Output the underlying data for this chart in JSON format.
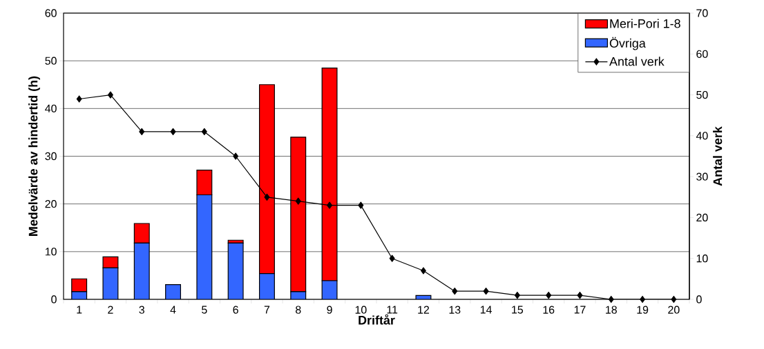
{
  "chart_data": {
    "type": "bar",
    "stacked": true,
    "xlabel": "Driftår",
    "ylabel": "Medelvärde av hindertid (h)",
    "y2label": "Antal verk",
    "categories": [
      "1",
      "2",
      "3",
      "4",
      "5",
      "6",
      "7",
      "8",
      "9",
      "10",
      "11",
      "12",
      "13",
      "14",
      "15",
      "16",
      "17",
      "18",
      "19",
      "20"
    ],
    "series": [
      {
        "name": "Övriga",
        "color": "#3366ff",
        "values": [
          1.6,
          6.6,
          11.8,
          3.1,
          21.9,
          11.8,
          5.4,
          1.6,
          3.9,
          0,
          0,
          0.8,
          0,
          0,
          0,
          0,
          0,
          0,
          0,
          0
        ]
      },
      {
        "name": "Meri-Pori 1-8",
        "color": "#ff0000",
        "values": [
          2.7,
          2.3,
          4.1,
          0,
          5.2,
          0.6,
          39.6,
          32.4,
          44.6,
          0,
          0,
          0,
          0,
          0,
          0,
          0,
          0,
          0,
          0,
          0
        ]
      },
      {
        "name": "Antal verk",
        "type": "line",
        "axis": "y2",
        "color": "#000000",
        "values": [
          49,
          50,
          41,
          41,
          41,
          35,
          25,
          24,
          23,
          23,
          10,
          7,
          2,
          2,
          1,
          1,
          1,
          0,
          0,
          0
        ]
      }
    ],
    "ylim": [
      0,
      60
    ],
    "yticks": [
      0,
      10,
      20,
      30,
      40,
      50,
      60
    ],
    "y2lim": [
      0,
      70
    ],
    "y2ticks": [
      0,
      10,
      20,
      30,
      40,
      50,
      60,
      70
    ],
    "grid": "y",
    "legend": "top right",
    "marker": "diamond"
  }
}
